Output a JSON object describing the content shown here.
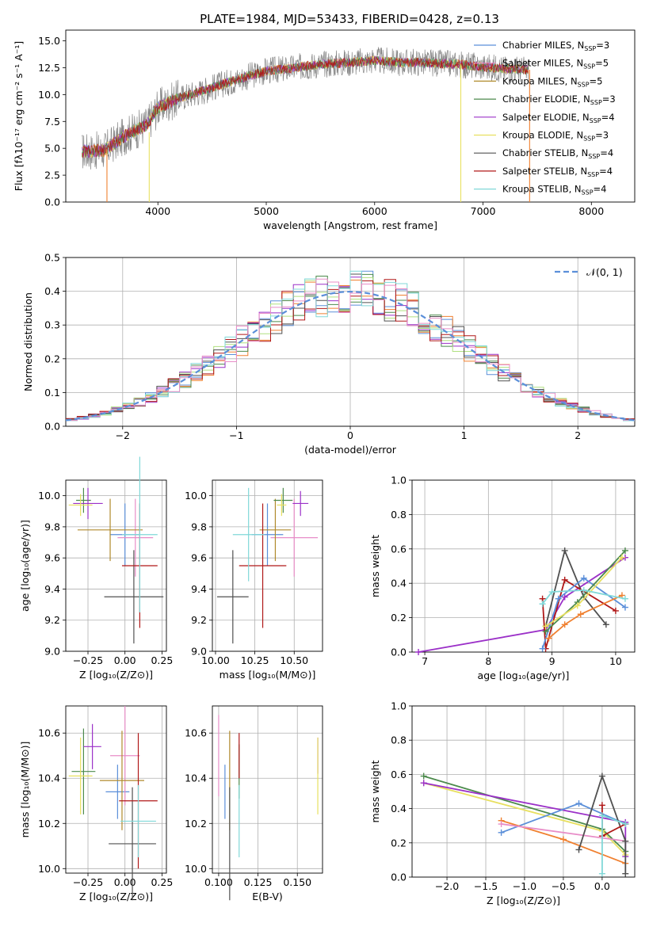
{
  "colors": {
    "chabrier_miles": "#5b8fd9",
    "salpeter_miles": "#e88dc8",
    "kroupa_miles": "#b08a2c",
    "chabrier_elodie": "#4c8a4c",
    "salpeter_elodie": "#9b30c8",
    "kroupa_elodie": "#e8e060",
    "chabrier_stelib": "#505050",
    "salpeter_stelib": "#b01818",
    "kroupa_stelib": "#80d8d8",
    "fit_orange": "#f08030",
    "gauss": "#5b8fd9"
  },
  "chart_data": [
    {
      "type": "line",
      "title": "PLATE=1984, MJD=53433, FIBERID=0428, z=0.13",
      "xlabel": "wavelength [Angstrom, rest frame]",
      "ylabel": "Flux [fλ10⁻¹⁷ erg cm⁻² s⁻¹ A⁻¹]",
      "xlim": [
        3150,
        8400
      ],
      "ylim": [
        0,
        16
      ],
      "xticks": [
        "4000",
        "5000",
        "6000",
        "7000",
        "8000"
      ],
      "yticks": [
        "0.0",
        "2.5",
        "5.0",
        "7.5",
        "10.0",
        "12.5",
        "15.0"
      ],
      "series_envelope": {
        "x": [
          3300,
          3500,
          3700,
          3900,
          4000,
          4200,
          4400,
          4600,
          4800,
          5000,
          5200,
          5400,
          5600,
          5800,
          6000,
          6200,
          6400,
          6600,
          6800,
          7000,
          7200,
          7400
        ],
        "y": [
          4.7,
          4.8,
          6.2,
          7.2,
          8.8,
          9.7,
          10.3,
          11.0,
          11.6,
          12.2,
          12.4,
          12.7,
          12.9,
          13.0,
          13.2,
          13.0,
          13.0,
          12.9,
          12.8,
          12.6,
          12.4,
          12.3
        ]
      },
      "legend": {
        "position": "top-right",
        "entries": [
          {
            "label": "Chabrier MILES, N",
            "sub": "SSP",
            "eq": "=3"
          },
          {
            "label": "Salpeter MILES, N",
            "sub": "SSP",
            "eq": "=5"
          },
          {
            "label": "Kroupa MILES, N",
            "sub": "SSP",
            "eq": "=5"
          },
          {
            "label": "Chabrier ELODIE, N",
            "sub": "SSP",
            "eq": "=3"
          },
          {
            "label": "Salpeter ELODIE, N",
            "sub": "SSP",
            "eq": "=4"
          },
          {
            "label": "Kroupa ELODIE, N",
            "sub": "SSP",
            "eq": "=3"
          },
          {
            "label": "Chabrier STELIB, N",
            "sub": "SSP",
            "eq": "=4"
          },
          {
            "label": "Salpeter STELIB, N",
            "sub": "SSP",
            "eq": "=4"
          },
          {
            "label": "Kroupa STELIB, N",
            "sub": "SSP",
            "eq": "=4"
          }
        ]
      }
    },
    {
      "type": "bar",
      "xlabel": "(data-model)/error",
      "ylabel": "Normed distribution",
      "xlim": [
        -2.5,
        2.5
      ],
      "ylim": [
        0,
        0.5
      ],
      "xticks": [
        "−2",
        "−1",
        "0",
        "1",
        "2"
      ],
      "yticks": [
        "0.0",
        "0.1",
        "0.2",
        "0.3",
        "0.4",
        "0.5"
      ],
      "legend": {
        "position": "top-right",
        "label": "𝒩(0, 1)"
      },
      "grid": true
    },
    {
      "type": "scatter",
      "xlabel": "Z [log₁₀(Z/Z⊙)]",
      "ylabel": "age  [log₁₀(age/yr)]",
      "xlim": [
        -0.4,
        0.28
      ],
      "ylim": [
        9.0,
        10.1
      ],
      "xticks": [
        "−0.25",
        "0.00",
        "0.25"
      ],
      "yticks": [
        "9.0",
        "9.2",
        "9.4",
        "9.6",
        "9.8",
        "10.0"
      ],
      "points": [
        {
          "series": "Chabrier MILES",
          "x": 0.0,
          "y": 9.75,
          "xerr": 0.1,
          "yerr": 0.2
        },
        {
          "series": "Salpeter MILES",
          "x": 0.07,
          "y": 9.73,
          "xerr": 0.12,
          "yerr": 0.25
        },
        {
          "series": "Kroupa MILES",
          "x": -0.1,
          "y": 9.78,
          "xerr": 0.22,
          "yerr": 0.2
        },
        {
          "series": "Chabrier ELODIE",
          "x": -0.28,
          "y": 9.97,
          "xerr": 0.05,
          "yerr": 0.08
        },
        {
          "series": "Salpeter ELODIE",
          "x": -0.25,
          "y": 9.95,
          "xerr": 0.1,
          "yerr": 0.1
        },
        {
          "series": "Kroupa ELODIE",
          "x": -0.3,
          "y": 9.94,
          "xerr": 0.08,
          "yerr": 0.07
        },
        {
          "series": "Chabrier STELIB",
          "x": 0.06,
          "y": 9.35,
          "xerr": 0.2,
          "yerr": 0.3
        },
        {
          "series": "Salpeter STELIB",
          "x": 0.1,
          "y": 9.55,
          "xerr": 0.12,
          "yerr": 0.4
        },
        {
          "series": "Kroupa STELIB",
          "x": 0.1,
          "y": 9.75,
          "xerr": 0.12,
          "yerr": 0.5
        }
      ]
    },
    {
      "type": "scatter",
      "xlabel": "mass [log₁₀(M/M⊙)]",
      "ylabel": "",
      "xlim": [
        9.98,
        10.68
      ],
      "ylim": [
        9.0,
        10.1
      ],
      "xticks": [
        "10.00",
        "10.25",
        "10.50"
      ],
      "yticks": [
        "9.0",
        "9.2",
        "9.4",
        "9.6",
        "9.8",
        "10.0"
      ],
      "points": [
        {
          "series": "Chabrier MILES",
          "x": 10.33,
          "y": 9.75,
          "xerr": 0.1,
          "yerr": 0.2
        },
        {
          "series": "Salpeter MILES",
          "x": 10.5,
          "y": 9.73,
          "xerr": 0.15,
          "yerr": 0.25
        },
        {
          "series": "Kroupa MILES",
          "x": 10.38,
          "y": 9.78,
          "xerr": 0.1,
          "yerr": 0.2
        },
        {
          "series": "Chabrier ELODIE",
          "x": 10.43,
          "y": 9.97,
          "xerr": 0.06,
          "yerr": 0.08
        },
        {
          "series": "Salpeter ELODIE",
          "x": 10.54,
          "y": 9.95,
          "xerr": 0.05,
          "yerr": 0.08
        },
        {
          "series": "Kroupa ELODIE",
          "x": 10.42,
          "y": 9.94,
          "xerr": 0.03,
          "yerr": 0.07
        },
        {
          "series": "Chabrier STELIB",
          "x": 10.11,
          "y": 9.35,
          "xerr": 0.1,
          "yerr": 0.3
        },
        {
          "series": "Salpeter STELIB",
          "x": 10.3,
          "y": 9.55,
          "xerr": 0.15,
          "yerr": 0.4
        },
        {
          "series": "Kroupa STELIB",
          "x": 10.21,
          "y": 9.75,
          "xerr": 0.1,
          "yerr": 0.3
        }
      ]
    },
    {
      "type": "line",
      "xlabel": "age  [log₁₀(age/yr)]",
      "ylabel": "mass weight",
      "xlim": [
        6.8,
        10.3
      ],
      "ylim": [
        0,
        1.0
      ],
      "xticks": [
        "7",
        "8",
        "9",
        "10"
      ],
      "yticks": [
        "0.0",
        "0.2",
        "0.4",
        "0.6",
        "0.8",
        "1.0"
      ],
      "series": [
        {
          "key": "salpeter_elodie",
          "x": [
            6.9,
            8.9,
            9.2,
            10.15
          ],
          "y": [
            0.0,
            0.13,
            0.32,
            0.55
          ]
        },
        {
          "key": "chabrier_stelib",
          "x": [
            8.9,
            9.2,
            9.5,
            9.85
          ],
          "y": [
            0.15,
            0.59,
            0.32,
            0.16
          ]
        },
        {
          "key": "salpeter_stelib",
          "x": [
            8.85,
            8.9,
            9.2,
            10.0
          ],
          "y": [
            0.31,
            0.02,
            0.42,
            0.24
          ]
        },
        {
          "key": "chabrier_miles",
          "x": [
            8.85,
            9.1,
            9.5,
            10.15
          ],
          "y": [
            0.02,
            0.31,
            0.43,
            0.26
          ]
        },
        {
          "key": "fit_orange",
          "x": [
            8.95,
            9.2,
            9.45,
            10.1
          ],
          "y": [
            0.08,
            0.16,
            0.22,
            0.33
          ]
        },
        {
          "key": "chabrier_elodie",
          "x": [
            8.9,
            9.4,
            10.15
          ],
          "y": [
            0.12,
            0.29,
            0.59
          ]
        },
        {
          "key": "kroupa_elodie",
          "x": [
            8.9,
            9.4,
            10.1
          ],
          "y": [
            0.15,
            0.27,
            0.55
          ]
        },
        {
          "key": "kroupa_stelib",
          "x": [
            8.85,
            9.0,
            9.5,
            10.15
          ],
          "y": [
            0.28,
            0.35,
            0.36,
            0.31
          ]
        }
      ]
    },
    {
      "type": "scatter",
      "xlabel": "Z [log₁₀(Z/Z⊙)]",
      "ylabel": "mass [log₁₀(M/M⊙)]",
      "xlim": [
        -0.4,
        0.28
      ],
      "ylim": [
        9.98,
        10.72
      ],
      "xticks": [
        "−0.25",
        "0.00",
        "0.25"
      ],
      "yticks": [
        "10.0",
        "10.2",
        "10.4",
        "10.6"
      ],
      "points": [
        {
          "series": "Chabrier MILES",
          "x": -0.05,
          "y": 10.34,
          "xerr": 0.08,
          "yerr": 0.12
        },
        {
          "series": "Salpeter MILES",
          "x": 0.0,
          "y": 10.5,
          "xerr": 0.1,
          "yerr": 0.22
        },
        {
          "series": "Kroupa MILES",
          "x": -0.02,
          "y": 10.39,
          "xerr": 0.15,
          "yerr": 0.22
        },
        {
          "series": "Chabrier ELODIE",
          "x": -0.28,
          "y": 10.43,
          "xerr": 0.08,
          "yerr": 0.19
        },
        {
          "series": "Salpeter ELODIE",
          "x": -0.22,
          "y": 10.54,
          "xerr": 0.06,
          "yerr": 0.1
        },
        {
          "series": "Kroupa ELODIE",
          "x": -0.3,
          "y": 10.41,
          "xerr": 0.08,
          "yerr": 0.17
        },
        {
          "series": "Chabrier STELIB",
          "x": 0.05,
          "y": 10.11,
          "xerr": 0.16,
          "yerr": 0.25
        },
        {
          "series": "Salpeter STELIB",
          "x": 0.09,
          "y": 10.3,
          "xerr": 0.13,
          "yerr": 0.3
        },
        {
          "series": "Kroupa STELIB",
          "x": 0.09,
          "y": 10.21,
          "xerr": 0.12,
          "yerr": 0.16
        }
      ]
    },
    {
      "type": "scatter",
      "xlabel": "E(B-V)",
      "ylabel": "",
      "xlim": [
        0.096,
        0.166
      ],
      "ylim": [
        9.98,
        10.72
      ],
      "xticks": [
        "0.100",
        "0.125",
        "0.150"
      ],
      "yticks": [
        "10.0",
        "10.2",
        "10.4",
        "10.6"
      ],
      "points": [
        {
          "series": "Chabrier MILES",
          "x": 0.104,
          "y": 10.34,
          "yerr": 0.12
        },
        {
          "series": "Salpeter MILES",
          "x": 0.1,
          "y": 10.5,
          "yerr": 0.18
        },
        {
          "series": "Kroupa MILES",
          "x": 0.107,
          "y": 10.39,
          "yerr": 0.22
        },
        {
          "series": "Chabrier ELODIE",
          "x": 0.113,
          "y": 10.43,
          "yerr": 0.12
        },
        {
          "series": "Salpeter ELODIE",
          "x": 0.163,
          "y": 10.5,
          "yerr": 0.08
        },
        {
          "series": "Kroupa ELODIE",
          "x": 0.163,
          "y": 10.41,
          "yerr": 0.17
        },
        {
          "series": "Chabrier STELIB",
          "x": 0.107,
          "y": 10.11,
          "yerr": 0.25
        },
        {
          "series": "Salpeter STELIB",
          "x": 0.113,
          "y": 10.5,
          "yerr": 0.1
        },
        {
          "series": "Kroupa STELIB",
          "x": 0.113,
          "y": 10.21,
          "yerr": 0.16
        }
      ]
    },
    {
      "type": "line",
      "xlabel": "Z [log₁₀(Z/Z⊙)]",
      "ylabel": "mass weight",
      "xlim": [
        -2.45,
        0.42
      ],
      "ylim": [
        0,
        1.0
      ],
      "xticks": [
        "−2.0",
        "−1.5",
        "−1.0",
        "−0.5",
        "0.0"
      ],
      "yticks": [
        "0.0",
        "0.2",
        "0.4",
        "0.6",
        "0.8",
        "1.0"
      ],
      "series": [
        {
          "key": "chabrier_elodie",
          "x": [
            -2.3,
            0.0,
            0.3
          ],
          "y": [
            0.59,
            0.28,
            0.15
          ]
        },
        {
          "key": "kroupa_elodie",
          "x": [
            -2.3,
            0.0,
            0.3
          ],
          "y": [
            0.55,
            0.27,
            0.13
          ]
        },
        {
          "key": "salpeter_elodie",
          "x": [
            -2.3,
            0.3,
            0.3
          ],
          "y": [
            0.55,
            0.32,
            0.12
          ]
        },
        {
          "key": "chabrier_miles",
          "x": [
            -1.3,
            -0.3,
            0.3
          ],
          "y": [
            0.26,
            0.43,
            0.31
          ]
        },
        {
          "key": "fit_orange",
          "x": [
            -1.3,
            -0.5,
            0.3
          ],
          "y": [
            0.33,
            0.22,
            0.08
          ]
        },
        {
          "key": "salpeter_miles",
          "x": [
            -1.3,
            0.3
          ],
          "y": [
            0.31,
            0.21
          ]
        },
        {
          "key": "chabrier_stelib",
          "x": [
            -0.3,
            0.0,
            0.3,
            0.3
          ],
          "y": [
            0.16,
            0.59,
            0.21,
            0.02
          ]
        },
        {
          "key": "salpeter_stelib",
          "x": [
            0.0,
            0.0,
            0.3
          ],
          "y": [
            0.42,
            0.24,
            0.31
          ]
        },
        {
          "key": "kroupa_stelib",
          "x": [
            0.0,
            0.0,
            0.3
          ],
          "y": [
            0.02,
            0.36,
            0.31
          ]
        }
      ]
    }
  ]
}
